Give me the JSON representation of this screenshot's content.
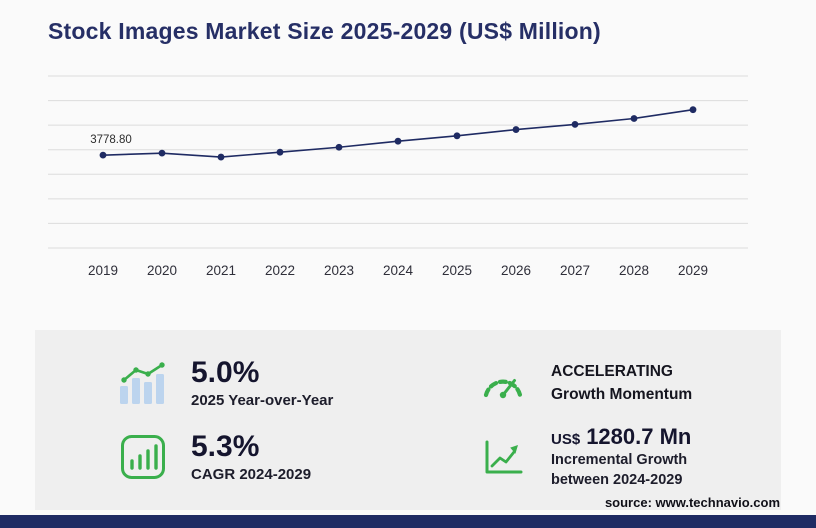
{
  "page": {
    "title": "Stock Images Market Size 2025-2029 (US$ Million)",
    "source": "source: www.technavio.com"
  },
  "chart_data": {
    "type": "line",
    "title": "Stock Images Market Size 2025-2029 (US$ Million)",
    "categories": [
      "2019",
      "2020",
      "2021",
      "2022",
      "2023",
      "2024",
      "2025",
      "2026",
      "2027",
      "2028",
      "2029"
    ],
    "values": [
      3778.8,
      3860,
      3700,
      3900,
      4100,
      4347.4,
      4564.8,
      4820,
      5030,
      5270,
      5628.1
    ],
    "first_point_label": "3778.80",
    "xlabel": "",
    "ylabel": "US$ Million",
    "ylim": [
      0,
      7000
    ],
    "grid_step": 1000,
    "grid": true,
    "legend": "none",
    "line_color": "#1f2b63",
    "marker_color": "#1f2b63",
    "gridline_color": "#dcdcdc"
  },
  "stats": {
    "yoy": {
      "value": "5.0%",
      "label": "2025 Year-over-Year"
    },
    "momentum": {
      "line1": "ACCELERATING",
      "line2": "Growth Momentum"
    },
    "cagr": {
      "value": "5.3%",
      "label": "CAGR 2024-2029"
    },
    "incremental": {
      "currency": "US$",
      "value": "1280.7 Mn",
      "line1": "Incremental Growth",
      "line2": "between 2024-2029"
    }
  },
  "colors": {
    "accent_green": "#3aaf4c",
    "bar_blue": "#bcd4ee",
    "navy": "#1f2b63"
  }
}
